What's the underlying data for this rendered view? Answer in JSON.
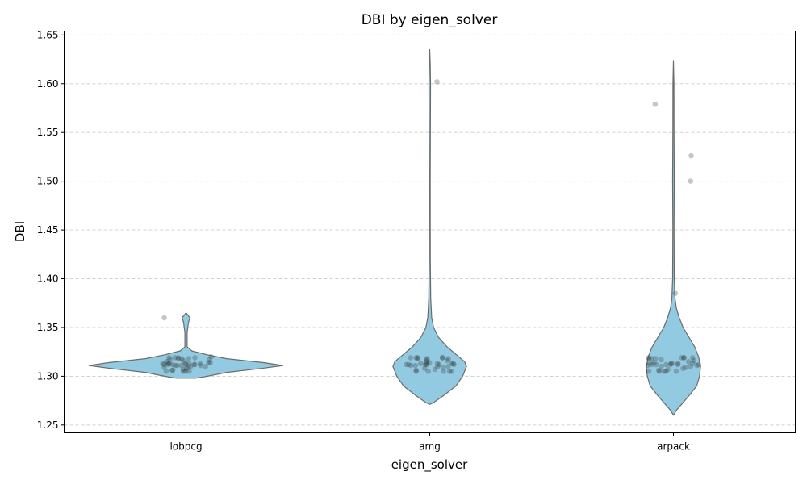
{
  "chart_data": {
    "type": "violin",
    "title": "DBI by eigen_solver",
    "xlabel": "eigen_solver",
    "ylabel": "DBI",
    "categories": [
      "lobpcg",
      "amg",
      "arpack"
    ],
    "ylim": [
      1.242,
      1.654
    ],
    "yticks": [
      "1.25",
      "1.30",
      "1.35",
      "1.40",
      "1.45",
      "1.50",
      "1.55",
      "1.60",
      "1.65"
    ],
    "grid": "y-dashed",
    "colors": {
      "violin_fill": "#92cbe1",
      "violin_edge": "#6b6b6b",
      "points": "#333333",
      "grid": "#cccccc"
    },
    "violins": [
      {
        "category": "lobpcg",
        "outline": [
          [
            1.298,
            0.1
          ],
          [
            1.3,
            0.22
          ],
          [
            1.304,
            0.42
          ],
          [
            1.308,
            0.78
          ],
          [
            1.311,
            1.0
          ],
          [
            1.314,
            0.8
          ],
          [
            1.318,
            0.42
          ],
          [
            1.322,
            0.22
          ],
          [
            1.326,
            0.06
          ],
          [
            1.33,
            0.012
          ],
          [
            1.345,
            0.012
          ],
          [
            1.355,
            0.025
          ],
          [
            1.36,
            0.04
          ],
          [
            1.365,
            0.0
          ]
        ]
      },
      {
        "category": "amg",
        "outline": [
          [
            1.271,
            0.0
          ],
          [
            1.273,
            0.04
          ],
          [
            1.28,
            0.14
          ],
          [
            1.29,
            0.27
          ],
          [
            1.3,
            0.34
          ],
          [
            1.31,
            0.38
          ],
          [
            1.315,
            0.36
          ],
          [
            1.32,
            0.3
          ],
          [
            1.33,
            0.18
          ],
          [
            1.34,
            0.09
          ],
          [
            1.35,
            0.04
          ],
          [
            1.36,
            0.02
          ],
          [
            1.38,
            0.01
          ],
          [
            1.42,
            0.006
          ],
          [
            1.5,
            0.005
          ],
          [
            1.6,
            0.008
          ],
          [
            1.62,
            0.005
          ],
          [
            1.635,
            0.0
          ]
        ]
      },
      {
        "category": "arpack",
        "outline": [
          [
            1.26,
            0.0
          ],
          [
            1.265,
            0.03
          ],
          [
            1.28,
            0.16
          ],
          [
            1.29,
            0.24
          ],
          [
            1.3,
            0.27
          ],
          [
            1.31,
            0.28
          ],
          [
            1.32,
            0.26
          ],
          [
            1.33,
            0.22
          ],
          [
            1.34,
            0.16
          ],
          [
            1.35,
            0.1
          ],
          [
            1.36,
            0.06
          ],
          [
            1.37,
            0.03
          ],
          [
            1.38,
            0.016
          ],
          [
            1.4,
            0.008
          ],
          [
            1.45,
            0.006
          ],
          [
            1.5,
            0.008
          ],
          [
            1.55,
            0.006
          ],
          [
            1.6,
            0.005
          ],
          [
            1.623,
            0.0
          ]
        ]
      }
    ],
    "points": [
      {
        "category": "lobpcg",
        "values": [
          1.305,
          1.305,
          1.305,
          1.306,
          1.307,
          1.308,
          1.309,
          1.31,
          1.31,
          1.311,
          1.311,
          1.311,
          1.312,
          1.312,
          1.312,
          1.312,
          1.312,
          1.313,
          1.313,
          1.313,
          1.313,
          1.313,
          1.314,
          1.314,
          1.315,
          1.316,
          1.317,
          1.317,
          1.318,
          1.318,
          1.319,
          1.319,
          1.319,
          1.32,
          1.305,
          1.306,
          1.309,
          1.311,
          1.312,
          1.313,
          1.318,
          1.319,
          1.36
        ]
      },
      {
        "category": "amg",
        "values": [
          1.305,
          1.305,
          1.305,
          1.305,
          1.306,
          1.307,
          1.308,
          1.309,
          1.31,
          1.311,
          1.311,
          1.312,
          1.312,
          1.312,
          1.312,
          1.312,
          1.313,
          1.313,
          1.313,
          1.313,
          1.314,
          1.315,
          1.316,
          1.317,
          1.318,
          1.318,
          1.319,
          1.319,
          1.319,
          1.319,
          1.305,
          1.31,
          1.312,
          1.313,
          1.318,
          1.319,
          1.602
        ]
      },
      {
        "category": "arpack",
        "values": [
          1.305,
          1.305,
          1.305,
          1.305,
          1.306,
          1.307,
          1.308,
          1.309,
          1.31,
          1.311,
          1.311,
          1.312,
          1.312,
          1.312,
          1.312,
          1.312,
          1.313,
          1.313,
          1.313,
          1.313,
          1.314,
          1.315,
          1.316,
          1.317,
          1.318,
          1.318,
          1.319,
          1.319,
          1.319,
          1.319,
          1.305,
          1.31,
          1.312,
          1.313,
          1.318,
          1.319,
          1.385,
          1.5,
          1.526,
          1.579
        ]
      }
    ]
  }
}
